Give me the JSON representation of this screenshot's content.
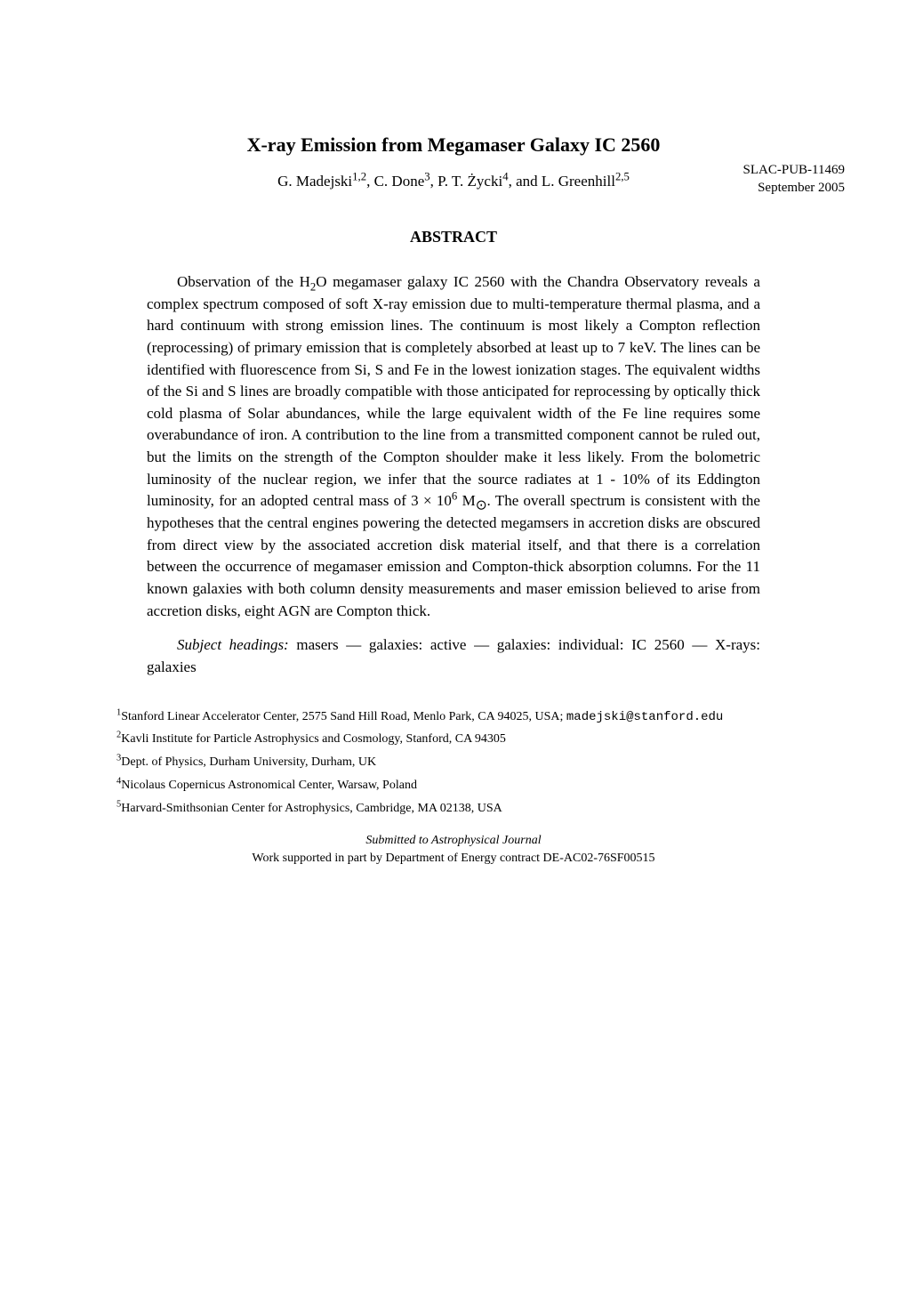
{
  "header": {
    "pub_id": "SLAC-PUB-11469",
    "date": "September 2005"
  },
  "title": "X-ray Emission from Megamaser Galaxy IC 2560",
  "authors": {
    "a1_name": "G. Madejski",
    "a1_sup": "1,2",
    "a2_name": "C. Done",
    "a2_sup": "3",
    "a3_name": "P. T. Życki",
    "a3_sup": "4",
    "a4_name": "L. Greenhill",
    "a4_sup": "2,5"
  },
  "abstract_heading": "ABSTRACT",
  "abstract_part1": "Observation of the H",
  "abstract_part2": "O megamaser galaxy IC 2560 with the Chandra Observatory reveals a complex spectrum composed of soft X-ray emission due to multi-temperature thermal plasma, and a hard continuum with strong emission lines. The continuum is most likely a Compton reflection (reprocessing) of primary emission that is completely absorbed at least up to 7 keV. The lines can be identified with fluorescence from Si, S and Fe in the lowest ionization stages. The equivalent widths of the Si and S lines are broadly compatible with those anticipated for reprocessing by optically thick cold plasma of Solar abundances, while the large equivalent width of the Fe line requires some overabundance of iron. A contribution to the line from a transmitted component cannot be ruled out, but the limits on the strength of the Compton shoulder make it less likely. From the bolometric luminosity of the nuclear region, we infer that the source radiates at 1 - 10% of its Eddington luminosity, for an adopted central mass of 3 × 10",
  "abstract_exp": "6",
  "abstract_part3": " M",
  "abstract_part4": ". The overall spectrum is consistent with the hypotheses that the central engines powering the detected megamsers in accretion disks are obscured from direct view by the associated accretion disk material itself, and that there is a correlation between the occurrence of megamaser emission and Compton-thick absorption columns. For the 11 known galaxies with both column density measurements and maser emission believed to arise from accretion disks, eight AGN are Compton thick.",
  "subject_label": "Subject headings:",
  "subject_text": " masers — galaxies: active — galaxies: individual: IC 2560 — X-rays: galaxies",
  "affiliations": {
    "aff1_text": "Stanford Linear Accelerator Center, 2575 Sand Hill Road, Menlo Park, CA 94025, USA; ",
    "aff1_email": "madejski@stanford.edu",
    "aff2_text": "Kavli Institute for Particle Astrophysics and Cosmology, Stanford, CA 94305",
    "aff3_text": "Dept. of Physics, Durham University, Durham, UK",
    "aff4_text": "Nicolaus Copernicus Astronomical Center, Warsaw, Poland",
    "aff5_text": "Harvard-Smithsonian Center for Astrophysics, Cambridge, MA 02138, USA"
  },
  "footer": {
    "submitted": "Submitted to Astrophysical Journal",
    "support": "Work supported in part by Department of Energy contract DE-AC02-76SF00515"
  }
}
